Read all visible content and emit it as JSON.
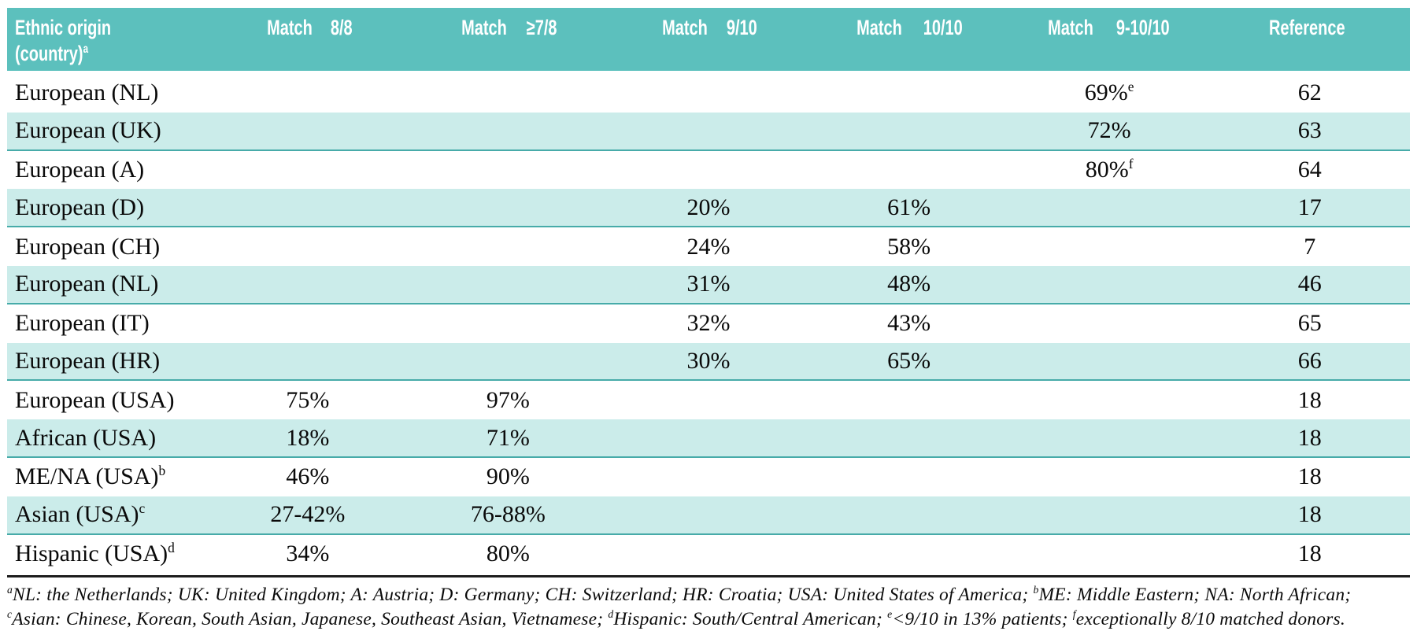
{
  "colors": {
    "header_bg": "#5cc0bd",
    "header_text": "#ffffff",
    "shaded_row_bg": "#cbecea",
    "shaded_row_border": "#47aba9",
    "body_text": "#0a0a0a",
    "rule_color": "#1d1d1d"
  },
  "table": {
    "columns": [
      {
        "line1": "Ethnic origin",
        "line2": "(country)",
        "line2_sup": "a"
      },
      {
        "line1": "Match",
        "line2": "8/8",
        "line2_sup": ""
      },
      {
        "line1": "Match",
        "line2": "≥7/8",
        "line2_sup": ""
      },
      {
        "line1": "Match",
        "line2": "9/10",
        "line2_sup": ""
      },
      {
        "line1": "Match",
        "line2": "10/10",
        "line2_sup": ""
      },
      {
        "line1": "Match",
        "line2": "9-10/10",
        "line2_sup": ""
      },
      {
        "line1": "Reference",
        "line2": "",
        "line2_sup": ""
      }
    ],
    "rows": [
      {
        "cells": [
          {
            "text": "European (NL)",
            "sup": ""
          },
          {
            "text": "",
            "sup": ""
          },
          {
            "text": "",
            "sup": ""
          },
          {
            "text": "",
            "sup": ""
          },
          {
            "text": "",
            "sup": ""
          },
          {
            "text": "69%",
            "sup": "e"
          },
          {
            "text": "62",
            "sup": ""
          }
        ]
      },
      {
        "cells": [
          {
            "text": "European (UK)",
            "sup": ""
          },
          {
            "text": "",
            "sup": ""
          },
          {
            "text": "",
            "sup": ""
          },
          {
            "text": "",
            "sup": ""
          },
          {
            "text": "",
            "sup": ""
          },
          {
            "text": "72%",
            "sup": ""
          },
          {
            "text": "63",
            "sup": ""
          }
        ]
      },
      {
        "cells": [
          {
            "text": "European (A)",
            "sup": ""
          },
          {
            "text": "",
            "sup": ""
          },
          {
            "text": "",
            "sup": ""
          },
          {
            "text": "",
            "sup": ""
          },
          {
            "text": "",
            "sup": ""
          },
          {
            "text": "80%",
            "sup": "f"
          },
          {
            "text": "64",
            "sup": ""
          }
        ]
      },
      {
        "cells": [
          {
            "text": "European (D)",
            "sup": ""
          },
          {
            "text": "",
            "sup": ""
          },
          {
            "text": "",
            "sup": ""
          },
          {
            "text": "20%",
            "sup": ""
          },
          {
            "text": "61%",
            "sup": ""
          },
          {
            "text": "",
            "sup": ""
          },
          {
            "text": "17",
            "sup": ""
          }
        ]
      },
      {
        "cells": [
          {
            "text": "European (CH)",
            "sup": ""
          },
          {
            "text": "",
            "sup": ""
          },
          {
            "text": "",
            "sup": ""
          },
          {
            "text": "24%",
            "sup": ""
          },
          {
            "text": "58%",
            "sup": ""
          },
          {
            "text": "",
            "sup": ""
          },
          {
            "text": "7",
            "sup": ""
          }
        ]
      },
      {
        "cells": [
          {
            "text": "European (NL)",
            "sup": ""
          },
          {
            "text": "",
            "sup": ""
          },
          {
            "text": "",
            "sup": ""
          },
          {
            "text": "31%",
            "sup": ""
          },
          {
            "text": "48%",
            "sup": ""
          },
          {
            "text": "",
            "sup": ""
          },
          {
            "text": "46",
            "sup": ""
          }
        ]
      },
      {
        "cells": [
          {
            "text": "European (IT)",
            "sup": ""
          },
          {
            "text": "",
            "sup": ""
          },
          {
            "text": "",
            "sup": ""
          },
          {
            "text": "32%",
            "sup": ""
          },
          {
            "text": "43%",
            "sup": ""
          },
          {
            "text": "",
            "sup": ""
          },
          {
            "text": "65",
            "sup": ""
          }
        ]
      },
      {
        "cells": [
          {
            "text": "European (HR)",
            "sup": ""
          },
          {
            "text": "",
            "sup": ""
          },
          {
            "text": "",
            "sup": ""
          },
          {
            "text": "30%",
            "sup": ""
          },
          {
            "text": "65%",
            "sup": ""
          },
          {
            "text": "",
            "sup": ""
          },
          {
            "text": "66",
            "sup": ""
          }
        ]
      },
      {
        "cells": [
          {
            "text": "European (USA)",
            "sup": ""
          },
          {
            "text": "75%",
            "sup": ""
          },
          {
            "text": "97%",
            "sup": ""
          },
          {
            "text": "",
            "sup": ""
          },
          {
            "text": "",
            "sup": ""
          },
          {
            "text": "",
            "sup": ""
          },
          {
            "text": "18",
            "sup": ""
          }
        ]
      },
      {
        "cells": [
          {
            "text": "African (USA)",
            "sup": ""
          },
          {
            "text": "18%",
            "sup": ""
          },
          {
            "text": "71%",
            "sup": ""
          },
          {
            "text": "",
            "sup": ""
          },
          {
            "text": "",
            "sup": ""
          },
          {
            "text": "",
            "sup": ""
          },
          {
            "text": "18",
            "sup": ""
          }
        ]
      },
      {
        "cells": [
          {
            "text": "ME/NA (USA)",
            "sup": "b"
          },
          {
            "text": "46%",
            "sup": ""
          },
          {
            "text": "90%",
            "sup": ""
          },
          {
            "text": "",
            "sup": ""
          },
          {
            "text": "",
            "sup": ""
          },
          {
            "text": "",
            "sup": ""
          },
          {
            "text": "18",
            "sup": ""
          }
        ]
      },
      {
        "cells": [
          {
            "text": "Asian (USA)",
            "sup": "c"
          },
          {
            "text": "27-42%",
            "sup": ""
          },
          {
            "text": "76-88%",
            "sup": ""
          },
          {
            "text": "",
            "sup": ""
          },
          {
            "text": "",
            "sup": ""
          },
          {
            "text": "",
            "sup": ""
          },
          {
            "text": "18",
            "sup": ""
          }
        ]
      },
      {
        "cells": [
          {
            "text": "Hispanic (USA)",
            "sup": "d"
          },
          {
            "text": "34%",
            "sup": ""
          },
          {
            "text": "80%",
            "sup": ""
          },
          {
            "text": "",
            "sup": ""
          },
          {
            "text": "",
            "sup": ""
          },
          {
            "text": "",
            "sup": ""
          },
          {
            "text": "18",
            "sup": ""
          }
        ]
      }
    ]
  },
  "footnote": {
    "segments": [
      {
        "sup": "a",
        "text": "NL: the Netherlands; UK: United Kingdom; A: Austria; D: Germany; CH: Switzerland; HR: Croatia; USA: United States of America; "
      },
      {
        "sup": "b",
        "text": "ME: Middle Eastern; NA: North African; "
      },
      {
        "sup": "c",
        "text": "Asian: Chinese, Korean, South Asian, Japanese, Southeast Asian, Vietnamese; "
      },
      {
        "sup": "d",
        "text": "Hispanic: South/Central American; "
      },
      {
        "sup": "e",
        "text": "<9/10 in 13% patients; "
      },
      {
        "sup": "f",
        "text": "exceptionally 8/10 matched donors."
      }
    ]
  }
}
